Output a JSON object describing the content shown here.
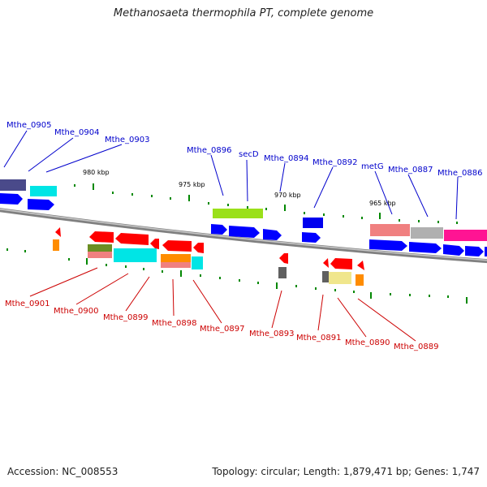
{
  "title": "Methanosaeta thermophila PT, complete genome",
  "accession": "Accession: NC_008553",
  "summary": "Topology: circular; Length: 1,879,471 bp; Genes: 1,747",
  "scale_labels": [
    "980 kbp",
    "975 kbp",
    "970 kbp",
    "965 kbp"
  ],
  "forward_labels": [
    "Mthe_0905",
    "Mthe_0904",
    "Mthe_0903",
    "Mthe_0896",
    "secD",
    "Mthe_0894",
    "Mthe_0892",
    "metG",
    "Mthe_0887",
    "Mthe_0886"
  ],
  "reverse_labels": [
    "Mthe_0901",
    "Mthe_0900",
    "Mthe_0899",
    "Mthe_0898",
    "Mthe_0897",
    "Mthe_0893",
    "Mthe_0891",
    "Mthe_0890",
    "Mthe_0889"
  ],
  "colors": {
    "forward_label": "#0000cc",
    "reverse_label": "#cc0000",
    "backbone": "#808080",
    "tick": "#008800",
    "cds": "#0000ff",
    "cds_reverse": "#ff0000"
  }
}
